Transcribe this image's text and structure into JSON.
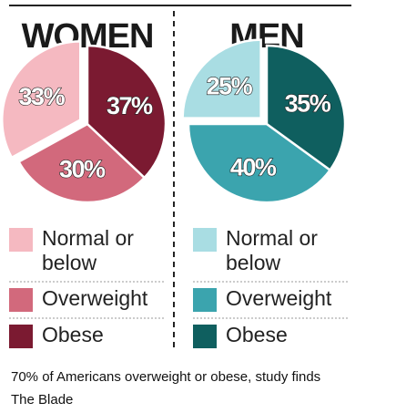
{
  "chart_data": [
    {
      "type": "pie",
      "title": "WOMEN",
      "categories": [
        "Normal or below",
        "Overweight",
        "Obese"
      ],
      "values": [
        33,
        30,
        37
      ],
      "value_labels": [
        "33%",
        "30%",
        "37%"
      ],
      "colors": [
        "#f5b9c1",
        "#d2697c",
        "#7b1a31"
      ]
    },
    {
      "type": "pie",
      "title": "MEN",
      "categories": [
        "Normal or below",
        "Overweight",
        "Obese"
      ],
      "values": [
        25,
        40,
        35
      ],
      "value_labels": [
        "25%",
        "40%",
        "35%"
      ],
      "colors": [
        "#a9dde3",
        "#3ba4ae",
        "#0f5f5f"
      ]
    }
  ],
  "caption": {
    "headline": "70% of Americans overweight or obese, study finds",
    "source": "The Blade"
  }
}
